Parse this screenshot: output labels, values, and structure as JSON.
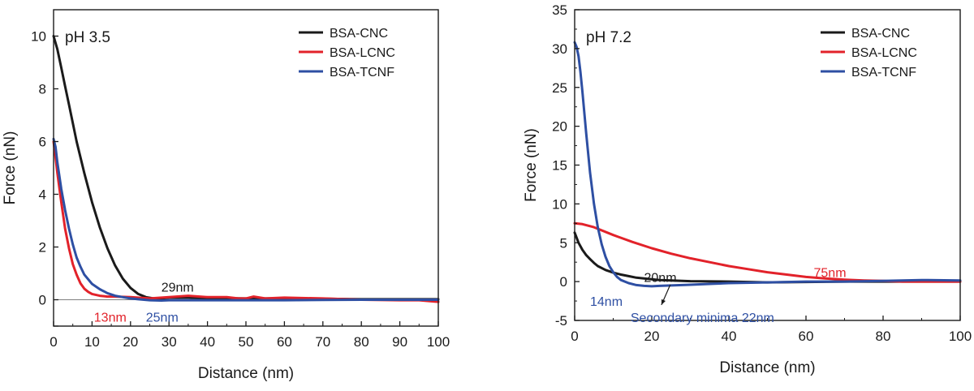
{
  "chart_data": [
    {
      "type": "line",
      "title": "pH 3.5",
      "xlabel": "Distance (nm)",
      "ylabel": "Force (nN)",
      "xlim": [
        0,
        100
      ],
      "ylim": [
        -1,
        11
      ],
      "xticks": [
        0,
        10,
        20,
        30,
        40,
        50,
        60,
        70,
        80,
        90,
        100
      ],
      "yticks": [
        -1,
        0,
        2,
        4,
        6,
        8,
        10
      ],
      "ytick_labels": [
        "",
        "0",
        "2",
        "4",
        "6",
        "8",
        "10"
      ],
      "grid": false,
      "legend_position": "top-right",
      "zero_line": true,
      "series": [
        {
          "name": "BSA-CNC",
          "color": "#1a1a1a",
          "x": [
            0,
            1,
            2,
            3,
            4,
            5,
            6,
            8,
            10,
            12,
            14,
            16,
            18,
            20,
            22,
            24,
            26,
            28,
            30,
            35,
            40,
            45,
            50,
            55,
            60,
            70,
            80,
            90,
            100
          ],
          "y": [
            10.0,
            9.5,
            8.8,
            8.1,
            7.4,
            6.7,
            6.0,
            4.8,
            3.7,
            2.75,
            1.95,
            1.3,
            0.8,
            0.45,
            0.22,
            0.1,
            0.05,
            0.05,
            0.08,
            0.08,
            0.06,
            0.06,
            0.05,
            0.05,
            0.05,
            0.04,
            0.02,
            0.02,
            0.02
          ]
        },
        {
          "name": "BSA-LCNC",
          "color": "#e2222a",
          "x": [
            0,
            0.5,
            1,
            2,
            3,
            4,
            5,
            6,
            7,
            8,
            9,
            10,
            12,
            14,
            16,
            20,
            25,
            30,
            35,
            40,
            45,
            48,
            50,
            52,
            55,
            60,
            70,
            80,
            90,
            95,
            100
          ],
          "y": [
            6.0,
            5.4,
            4.8,
            3.7,
            2.7,
            1.95,
            1.35,
            0.95,
            0.62,
            0.42,
            0.3,
            0.22,
            0.15,
            0.12,
            0.12,
            0.1,
            0.05,
            0.1,
            0.15,
            0.1,
            0.1,
            0.05,
            0.05,
            0.12,
            0.05,
            0.08,
            0.05,
            0.0,
            -0.02,
            -0.02,
            -0.08
          ]
        },
        {
          "name": "BSA-TCNF",
          "color": "#2e4fa3",
          "x": [
            0,
            0.5,
            1,
            2,
            3,
            4,
            5,
            6,
            7,
            8,
            10,
            12,
            14,
            16,
            18,
            20,
            22,
            25,
            28,
            30,
            40,
            50,
            60,
            70,
            80,
            90,
            100
          ],
          "y": [
            6.1,
            5.8,
            5.2,
            4.2,
            3.4,
            2.7,
            2.1,
            1.6,
            1.25,
            0.95,
            0.6,
            0.4,
            0.25,
            0.15,
            0.1,
            0.05,
            0.02,
            -0.02,
            -0.03,
            -0.02,
            -0.02,
            -0.02,
            -0.02,
            -0.01,
            0.0,
            0.0,
            0.0
          ]
        }
      ],
      "annotations": [
        {
          "text": "29nm",
          "x": 28,
          "y": 0.5,
          "color": "#1a1a1a"
        },
        {
          "text": "13nm",
          "x": 10.5,
          "y": -0.65,
          "color": "#e2222a"
        },
        {
          "text": "25nm",
          "x": 24,
          "y": -0.65,
          "color": "#2e4fa3"
        }
      ]
    },
    {
      "type": "line",
      "title": "pH 7.2",
      "xlabel": "Distance (nm)",
      "ylabel": "Force (nN)",
      "xlim": [
        0,
        100
      ],
      "ylim": [
        -5,
        35
      ],
      "xticks": [
        0,
        20,
        40,
        60,
        80,
        100
      ],
      "yticks": [
        -5,
        0,
        5,
        10,
        15,
        20,
        25,
        30,
        35
      ],
      "ytick_labels": [
        "-5",
        "0",
        "5",
        "10",
        "15",
        "20",
        "25",
        "30",
        "35"
      ],
      "grid": false,
      "legend_position": "top-right",
      "zero_line": false,
      "series": [
        {
          "name": "BSA-CNC",
          "color": "#1a1a1a",
          "x": [
            0,
            1,
            2,
            3,
            4,
            5,
            6,
            8,
            10,
            12,
            14,
            16,
            18,
            20,
            22,
            25,
            30,
            40,
            50,
            60,
            70,
            80,
            90,
            100
          ],
          "y": [
            6.3,
            5.0,
            4.1,
            3.4,
            2.9,
            2.4,
            2.0,
            1.5,
            1.15,
            0.9,
            0.7,
            0.5,
            0.4,
            0.3,
            0.2,
            0.15,
            0.05,
            0.0,
            -0.1,
            -0.05,
            0.0,
            0.0,
            0.0,
            0.0
          ]
        },
        {
          "name": "BSA-LCNC",
          "color": "#e2222a",
          "x": [
            0,
            2,
            5,
            10,
            15,
            20,
            25,
            30,
            35,
            40,
            45,
            50,
            55,
            60,
            65,
            70,
            75,
            80,
            85,
            90,
            95,
            100
          ],
          "y": [
            7.5,
            7.4,
            7.0,
            6.0,
            5.1,
            4.3,
            3.6,
            3.0,
            2.5,
            2.0,
            1.6,
            1.2,
            0.9,
            0.6,
            0.4,
            0.25,
            0.15,
            0.1,
            0.0,
            0.0,
            0.0,
            0.0
          ]
        },
        {
          "name": "BSA-TCNF",
          "color": "#2e4fa3",
          "x": [
            0,
            0.5,
            1,
            1.5,
            2,
            3,
            4,
            5,
            6,
            7,
            8,
            9,
            10,
            11,
            12,
            14,
            16,
            18,
            20,
            22,
            25,
            30,
            35,
            40,
            50,
            60,
            70,
            80,
            90,
            100
          ],
          "y": [
            30.8,
            30.2,
            29.0,
            27.0,
            24.5,
            19.0,
            14.0,
            10.0,
            7.0,
            4.8,
            3.2,
            2.0,
            1.2,
            0.6,
            0.2,
            -0.2,
            -0.45,
            -0.55,
            -0.6,
            -0.55,
            -0.5,
            -0.4,
            -0.3,
            -0.2,
            -0.1,
            0.0,
            0.0,
            0.1,
            0.2,
            0.15
          ]
        }
      ],
      "annotations": [
        {
          "text": "20nm",
          "x": 18,
          "y": 0.6,
          "color": "#1a1a1a"
        },
        {
          "text": "75nm",
          "x": 62,
          "y": 1.2,
          "color": "#e2222a"
        },
        {
          "text": "14nm",
          "x": 4,
          "y": -2.5,
          "color": "#2e4fa3"
        },
        {
          "text": "Secondary minima 22nm",
          "x": 14.5,
          "y": -4.6,
          "color": "#2e4fa3"
        }
      ],
      "arrow": {
        "from": [
          24.8,
          -0.4
        ],
        "to": [
          22.5,
          -3.0
        ]
      }
    }
  ]
}
